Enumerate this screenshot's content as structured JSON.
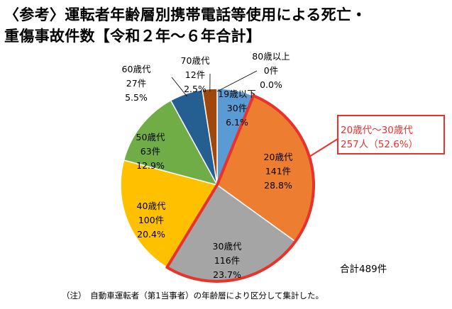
{
  "title": {
    "line1": "〈参考〉運転者年齢層別携帯電話等使用による死亡・",
    "line2": "重傷事故件数【令和２年～６年合計】"
  },
  "chart_data": {
    "type": "pie",
    "slices": [
      {
        "label": "19歳以下",
        "count": "30件",
        "pct": "6.1%",
        "value": 30,
        "color": "#5b9bd5"
      },
      {
        "label": "20歳代",
        "count": "141件",
        "pct": "28.8%",
        "value": 141,
        "color": "#ed7d31"
      },
      {
        "label": "30歳代",
        "count": "116件",
        "pct": "23.7%",
        "value": 116,
        "color": "#a5a5a5"
      },
      {
        "label": "40歳代",
        "count": "100件",
        "pct": "20.4%",
        "value": 100,
        "color": "#ffc000"
      },
      {
        "label": "50歳代",
        "count": "63件",
        "pct": "12.9%",
        "value": 63,
        "color": "#70ad47"
      },
      {
        "label": "60歳代",
        "count": "27件",
        "pct": "5.5%",
        "value": 27,
        "color": "#255e91"
      },
      {
        "label": "70歳代",
        "count": "12件",
        "pct": "2.5%",
        "value": 12,
        "color": "#9e480e"
      },
      {
        "label": "80歳以上",
        "count": "0件",
        "pct": "0.0%",
        "value": 0,
        "color": "#636363"
      }
    ],
    "highlight": {
      "slices": [
        "20歳代",
        "30歳代"
      ],
      "color": "#e8322b"
    }
  },
  "callout": {
    "line1": "20歳代～30歳代",
    "line2": "257人（52.6%）"
  },
  "total": "合計489件",
  "note": "（注）　自動車運転者（第1当事者）の年齢層により区分して集計した。"
}
